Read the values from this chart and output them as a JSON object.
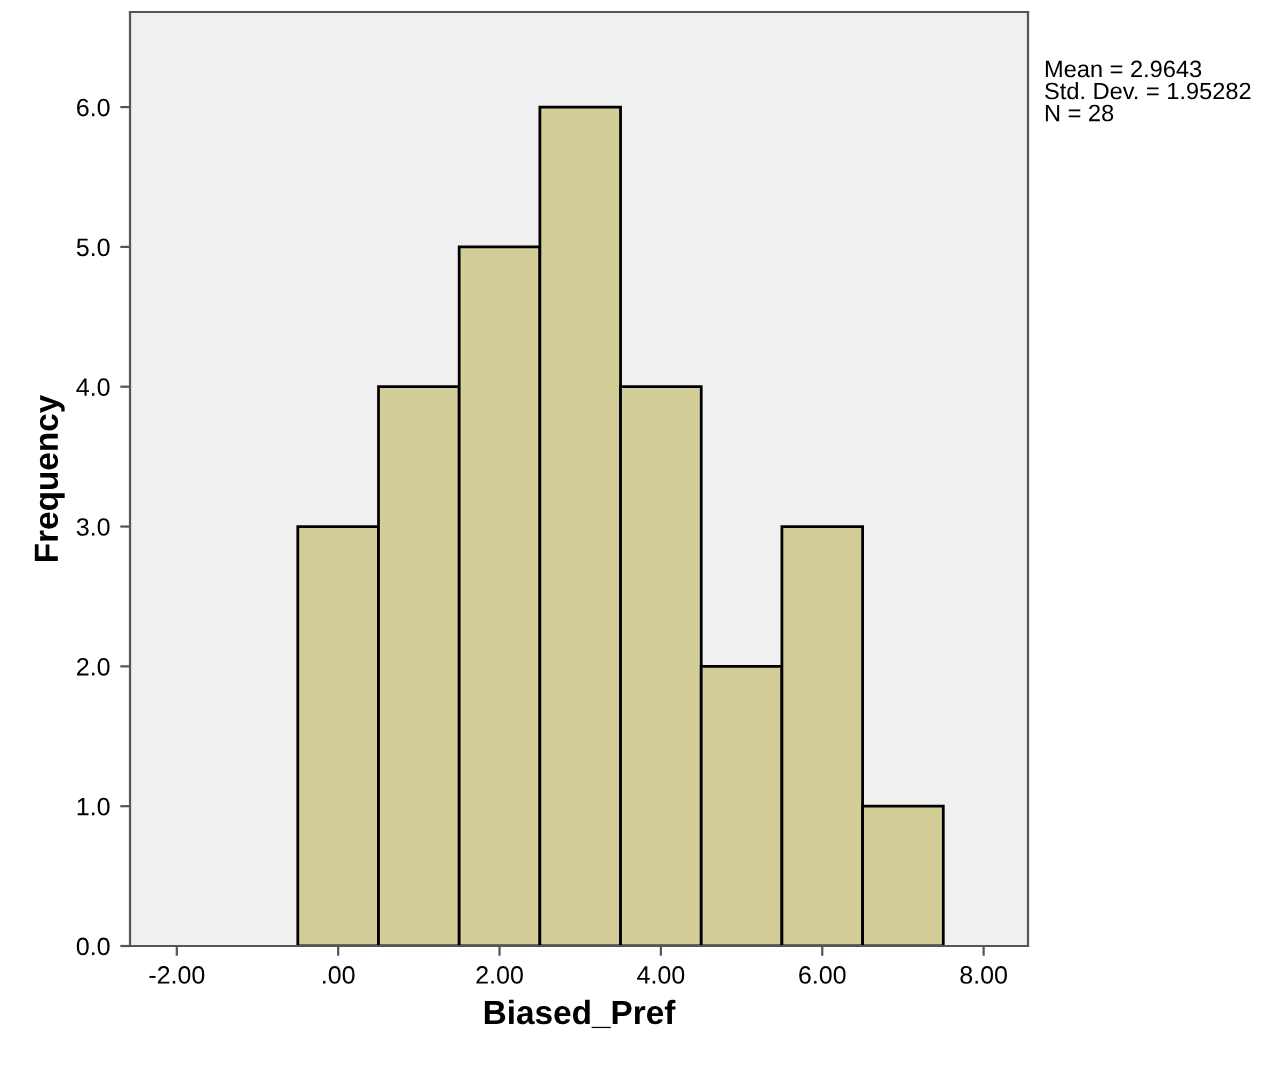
{
  "chart_data": {
    "type": "histogram",
    "xlabel": "Biased_Pref",
    "ylabel": "Frequency",
    "bins": [
      -0.5,
      0.5,
      1.5,
      2.5,
      3.5,
      4.5,
      5.5,
      6.5,
      7.5
    ],
    "values": [
      3,
      4,
      5,
      6,
      4,
      2,
      3,
      1
    ],
    "color": "#d3ce97",
    "xlim": [
      -2.58,
      8.55
    ],
    "xticks": [
      {
        "value": -2,
        "label": "-2.00"
      },
      {
        "value": 0,
        "label": ".00"
      },
      {
        "value": 2,
        "label": "2.00"
      },
      {
        "value": 4,
        "label": "4.00"
      },
      {
        "value": 6,
        "label": "6.00"
      },
      {
        "value": 8,
        "label": "8.00"
      }
    ],
    "ylim": [
      0,
      6.68
    ],
    "yticks": [
      {
        "value": 0,
        "label": "0.0"
      },
      {
        "value": 1,
        "label": "1.0"
      },
      {
        "value": 2,
        "label": "2.0"
      },
      {
        "value": 3,
        "label": "3.0"
      },
      {
        "value": 4,
        "label": "4.0"
      },
      {
        "value": 5,
        "label": "5.0"
      },
      {
        "value": 6,
        "label": "6.0"
      }
    ],
    "annotations": [
      "Mean = 2.9643\nStd. Dev. = 1.95282\nN = 28"
    ],
    "grid": false
  }
}
